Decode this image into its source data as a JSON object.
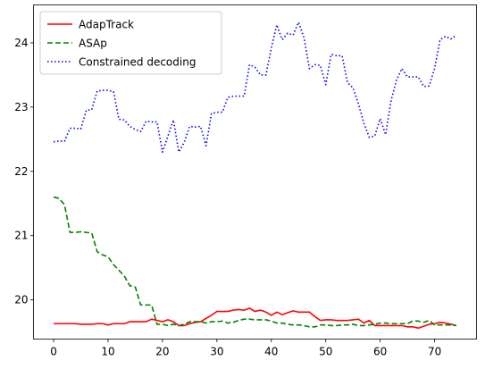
{
  "chart_data": {
    "type": "line",
    "title": "",
    "xlabel": "",
    "ylabel": "",
    "xlim": [
      -3.7,
      77.7
    ],
    "ylim": [
      19.39,
      24.59
    ],
    "xticks": [
      0,
      10,
      20,
      30,
      40,
      50,
      60,
      70
    ],
    "yticks": [
      20,
      21,
      22,
      23,
      24
    ],
    "grid": false,
    "legend_position": "top-left",
    "series": [
      {
        "name": "AdapTrack",
        "color": "#ff0000",
        "style": "solid",
        "x": [
          0,
          1,
          2,
          3,
          4,
          5,
          6,
          7,
          8,
          9,
          10,
          11,
          12,
          13,
          14,
          15,
          16,
          17,
          18,
          19,
          20,
          21,
          22,
          23,
          24,
          25,
          26,
          27,
          28,
          29,
          30,
          31,
          32,
          33,
          34,
          35,
          36,
          37,
          38,
          39,
          40,
          41,
          42,
          43,
          44,
          45,
          46,
          47,
          48,
          49,
          50,
          51,
          52,
          53,
          54,
          55,
          56,
          57,
          58,
          59,
          60,
          61,
          62,
          63,
          64,
          65,
          66,
          67,
          68,
          69,
          70,
          71,
          72,
          73,
          74
        ],
        "y": [
          19.63,
          19.63,
          19.63,
          19.63,
          19.63,
          19.62,
          19.62,
          19.62,
          19.63,
          19.63,
          19.61,
          19.63,
          19.63,
          19.63,
          19.66,
          19.66,
          19.66,
          19.66,
          19.7,
          19.68,
          19.66,
          19.69,
          19.66,
          19.6,
          19.6,
          19.63,
          19.65,
          19.66,
          19.71,
          19.76,
          19.82,
          19.82,
          19.82,
          19.84,
          19.85,
          19.84,
          19.87,
          19.82,
          19.84,
          19.81,
          19.76,
          19.81,
          19.77,
          19.8,
          19.83,
          19.81,
          19.81,
          19.81,
          19.74,
          19.68,
          19.69,
          19.69,
          19.68,
          19.68,
          19.68,
          19.69,
          19.7,
          19.64,
          19.68,
          19.6,
          19.6,
          19.6,
          19.6,
          19.6,
          19.6,
          19.58,
          19.58,
          19.56,
          19.59,
          19.62,
          19.63,
          19.65,
          19.64,
          19.62,
          19.6
        ]
      },
      {
        "name": "ASAp",
        "color": "#008000",
        "style": "dashed",
        "x": [
          0,
          1,
          2,
          3,
          4,
          5,
          6,
          7,
          8,
          9,
          10,
          11,
          12,
          13,
          14,
          15,
          16,
          17,
          18,
          19,
          20,
          21,
          22,
          23,
          24,
          25,
          26,
          27,
          28,
          29,
          30,
          31,
          32,
          33,
          34,
          35,
          36,
          37,
          38,
          39,
          40,
          41,
          42,
          43,
          44,
          45,
          46,
          47,
          48,
          49,
          50,
          51,
          52,
          53,
          54,
          55,
          56,
          57,
          58,
          59,
          60,
          61,
          62,
          63,
          64,
          65,
          66,
          67,
          68,
          69,
          70,
          71,
          72,
          73,
          74
        ],
        "y": [
          21.6,
          21.58,
          21.48,
          21.05,
          21.05,
          21.06,
          21.05,
          21.04,
          20.75,
          20.7,
          20.67,
          20.55,
          20.46,
          20.37,
          20.22,
          20.2,
          19.92,
          19.92,
          19.92,
          19.62,
          19.62,
          19.6,
          19.62,
          19.6,
          19.62,
          19.66,
          19.66,
          19.66,
          19.64,
          19.66,
          19.66,
          19.67,
          19.64,
          19.65,
          19.68,
          19.7,
          19.7,
          19.69,
          19.69,
          19.69,
          19.67,
          19.64,
          19.64,
          19.62,
          19.61,
          19.61,
          19.6,
          19.58,
          19.58,
          19.61,
          19.61,
          19.6,
          19.6,
          19.61,
          19.61,
          19.62,
          19.6,
          19.6,
          19.61,
          19.62,
          19.64,
          19.64,
          19.63,
          19.63,
          19.63,
          19.63,
          19.67,
          19.67,
          19.65,
          19.68,
          19.61,
          19.61,
          19.61,
          19.61,
          19.6
        ]
      },
      {
        "name": "Constrained decoding",
        "color": "#0000ff",
        "style": "dotted",
        "x": [
          0,
          1,
          2,
          3,
          4,
          5,
          6,
          7,
          8,
          9,
          10,
          11,
          12,
          13,
          14,
          15,
          16,
          17,
          18,
          19,
          20,
          21,
          22,
          23,
          24,
          25,
          26,
          27,
          28,
          29,
          30,
          31,
          32,
          33,
          34,
          35,
          36,
          37,
          38,
          39,
          40,
          41,
          42,
          43,
          44,
          45,
          46,
          47,
          48,
          49,
          50,
          51,
          52,
          53,
          54,
          55,
          56,
          57,
          58,
          59,
          60,
          61,
          62,
          63,
          64,
          65,
          66,
          67,
          68,
          69,
          70,
          71,
          72,
          73,
          74
        ],
        "y": [
          22.46,
          22.47,
          22.47,
          22.67,
          22.67,
          22.66,
          22.95,
          22.96,
          23.25,
          23.26,
          23.26,
          23.24,
          22.81,
          22.8,
          22.7,
          22.65,
          22.62,
          22.78,
          22.77,
          22.77,
          22.3,
          22.55,
          22.8,
          22.3,
          22.45,
          22.7,
          22.69,
          22.7,
          22.4,
          22.9,
          22.92,
          22.92,
          23.15,
          23.17,
          23.17,
          23.17,
          23.66,
          23.62,
          23.5,
          23.5,
          23.92,
          24.28,
          24.05,
          24.15,
          24.12,
          24.32,
          24.08,
          23.6,
          23.66,
          23.65,
          23.35,
          23.82,
          23.8,
          23.8,
          23.38,
          23.3,
          23.05,
          22.75,
          22.53,
          22.55,
          22.82,
          22.57,
          23.1,
          23.42,
          23.6,
          23.47,
          23.47,
          23.47,
          23.32,
          23.33,
          23.6,
          24.05,
          24.1,
          24.06,
          24.12
        ]
      }
    ]
  }
}
